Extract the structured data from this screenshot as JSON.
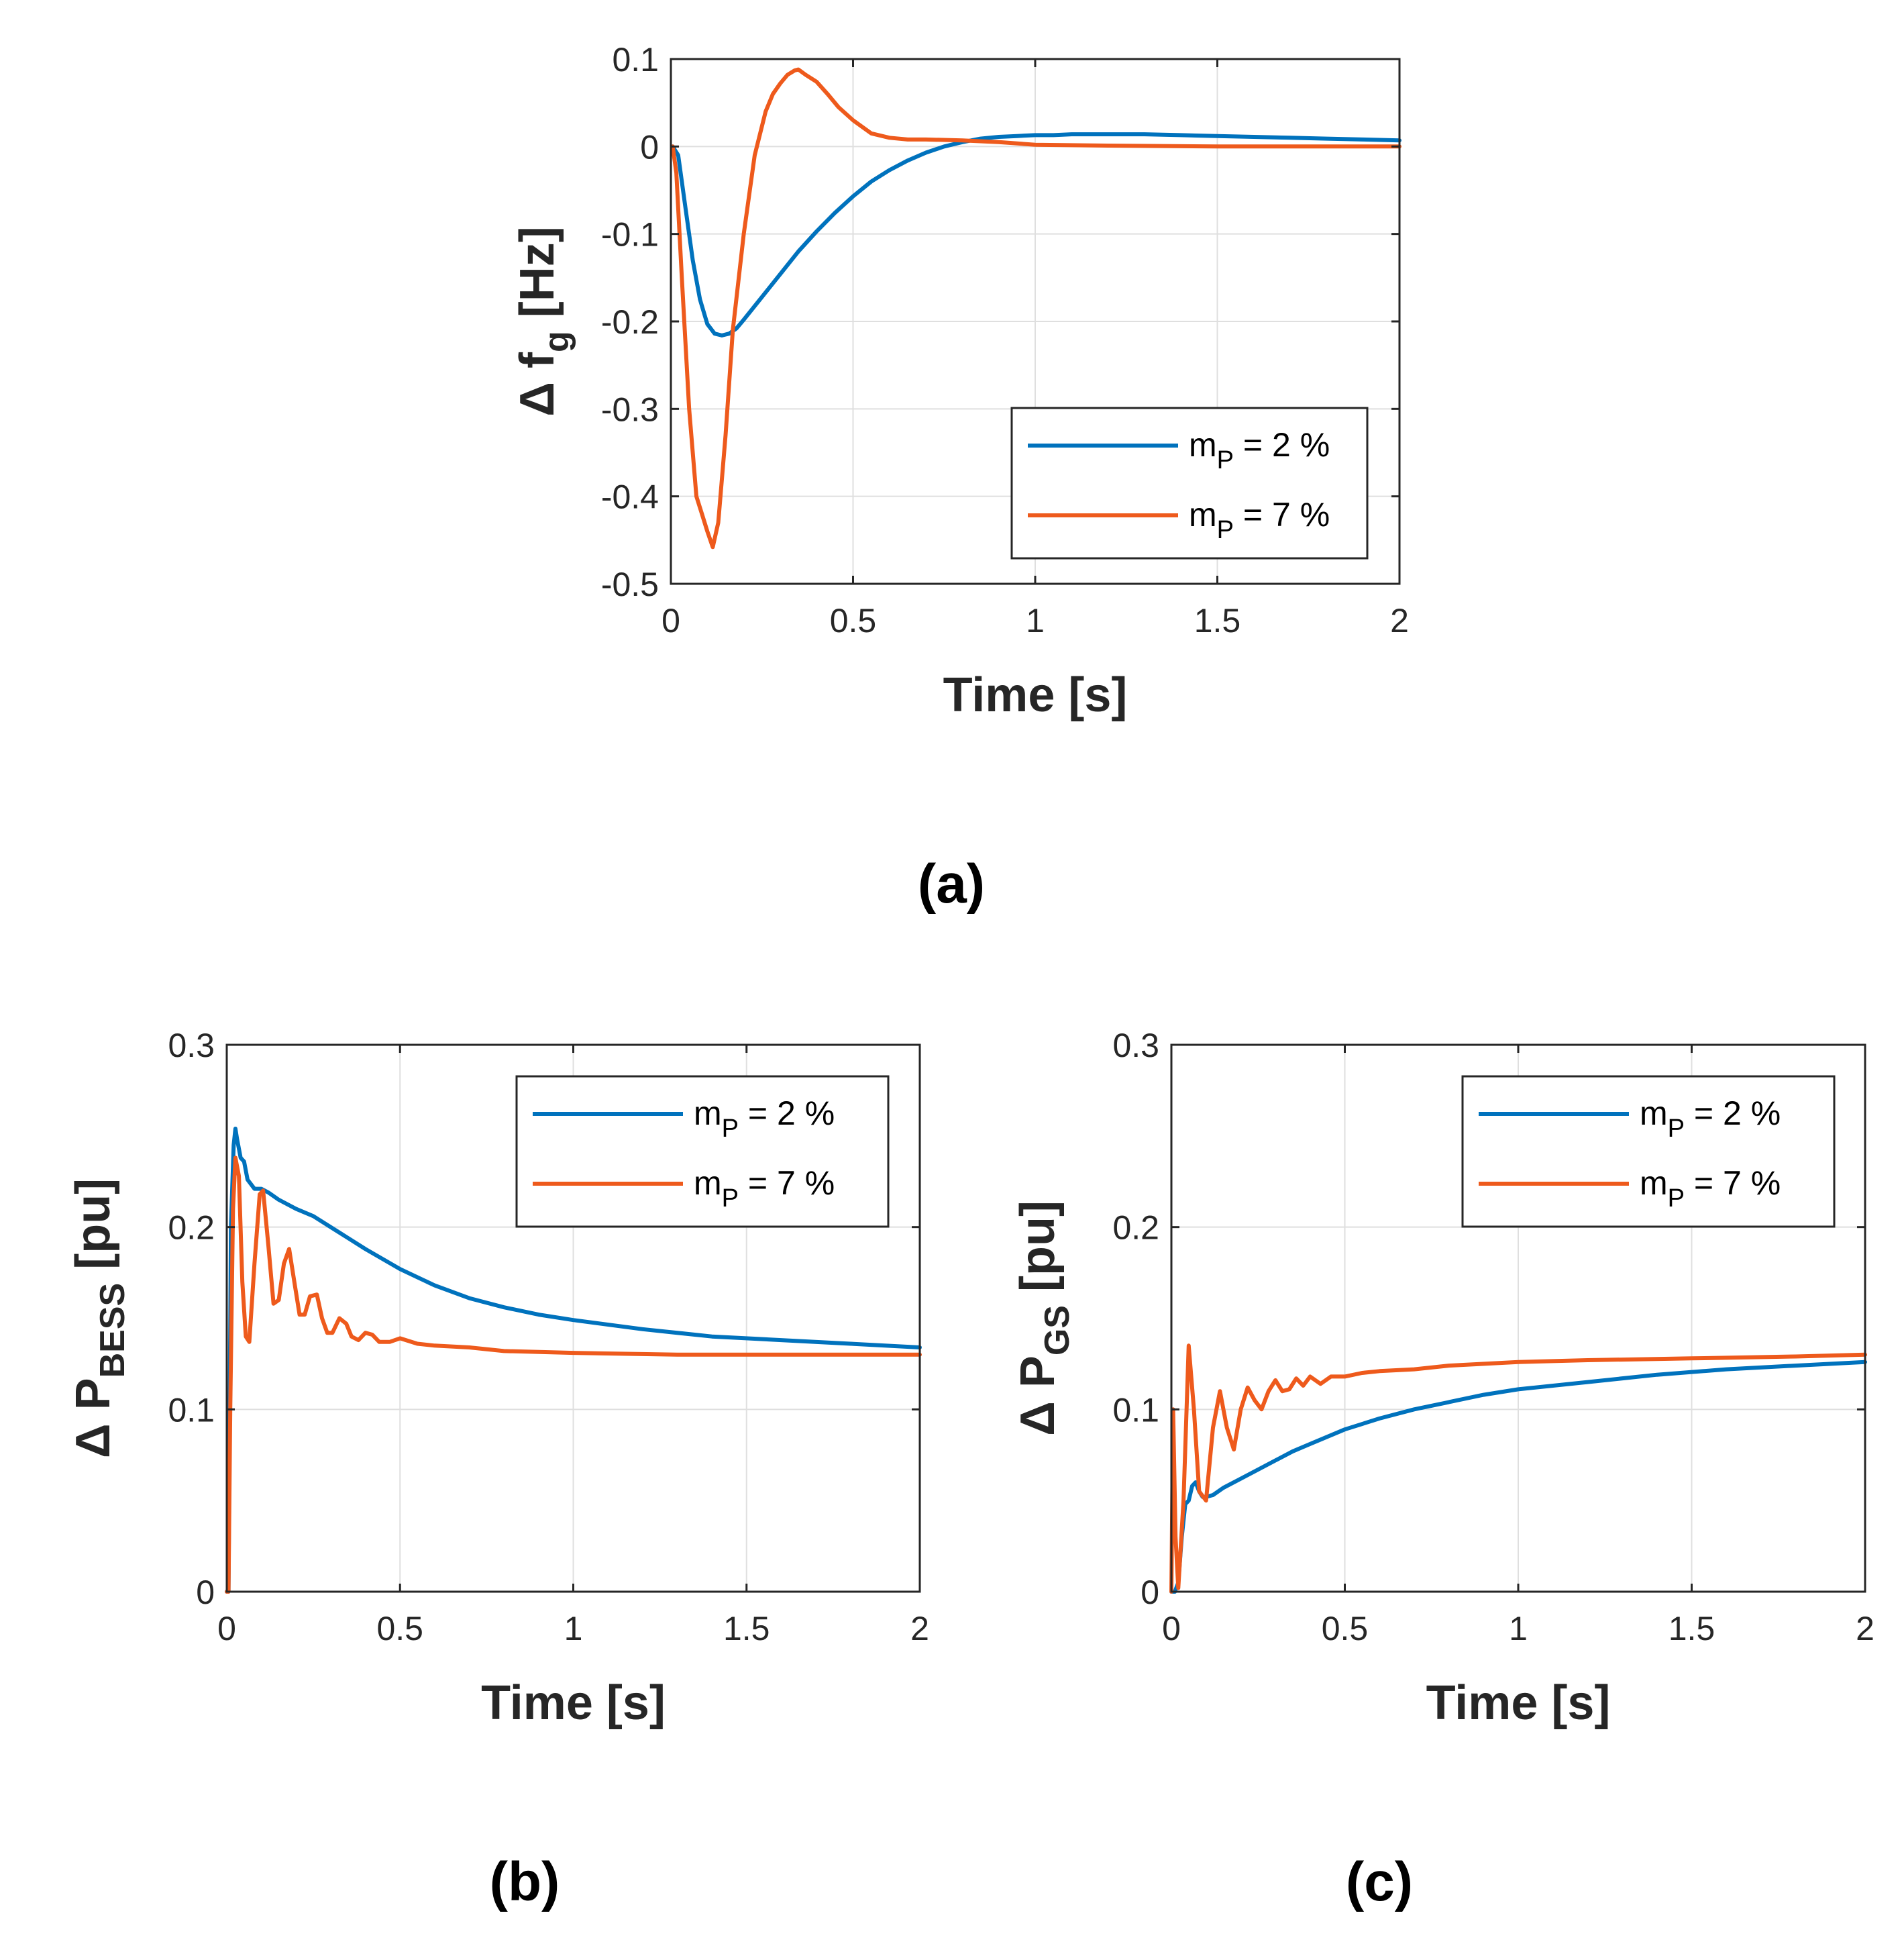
{
  "colors": {
    "series_1": "#0072BD",
    "series_2": "#EE5A1C",
    "axis": "#262626",
    "grid": "#dfdfdf"
  },
  "chart_data": [
    {
      "id": "a",
      "type": "line",
      "caption": "(a)",
      "title": "",
      "xlabel": "Time [s]",
      "ylabel": {
        "main": "Δ f",
        "sub": "g",
        "unit": "[Hz]"
      },
      "xlim": [
        0,
        2
      ],
      "ylim": [
        -0.5,
        0.1
      ],
      "xticks": [
        0,
        0.5,
        1,
        1.5,
        2
      ],
      "xtick_labels": [
        "0",
        "0.5",
        "1",
        "1.5",
        "2"
      ],
      "yticks": [
        -0.5,
        -0.4,
        -0.3,
        -0.2,
        -0.1,
        0,
        0.1
      ],
      "ytick_labels": [
        "-0.5",
        "-0.4",
        "-0.3",
        "-0.2",
        "-0.1",
        "0",
        "0.1"
      ],
      "grid": true,
      "legend_position": "bottom-right",
      "series": [
        {
          "name": {
            "main": "m",
            "sub": "P",
            "rest": " = 2 %"
          },
          "color_key": "series_1",
          "x": [
            0.005,
            0.02,
            0.04,
            0.06,
            0.08,
            0.1,
            0.12,
            0.14,
            0.16,
            0.18,
            0.2,
            0.25,
            0.3,
            0.35,
            0.4,
            0.45,
            0.5,
            0.55,
            0.6,
            0.65,
            0.7,
            0.75,
            0.8,
            0.85,
            0.9,
            0.95,
            1.0,
            1.05,
            1.1,
            1.2,
            1.3,
            1.4,
            1.5,
            1.6,
            1.7,
            1.8,
            1.9,
            2.0
          ],
          "y": [
            0,
            -0.01,
            -0.07,
            -0.13,
            -0.175,
            -0.203,
            -0.214,
            -0.216,
            -0.214,
            -0.208,
            -0.198,
            -0.172,
            -0.146,
            -0.12,
            -0.097,
            -0.076,
            -0.057,
            -0.04,
            -0.027,
            -0.016,
            -0.007,
            0,
            0.005,
            0.009,
            0.011,
            0.012,
            0.013,
            0.013,
            0.014,
            0.014,
            0.014,
            0.013,
            0.012,
            0.011,
            0.01,
            0.009,
            0.008,
            0.007
          ]
        },
        {
          "name": {
            "main": "m",
            "sub": "P",
            "rest": " = 7 %"
          },
          "color_key": "series_2",
          "x": [
            0.005,
            0.015,
            0.03,
            0.05,
            0.07,
            0.085,
            0.1,
            0.115,
            0.13,
            0.15,
            0.17,
            0.2,
            0.23,
            0.26,
            0.28,
            0.3,
            0.32,
            0.34,
            0.35,
            0.37,
            0.4,
            0.43,
            0.46,
            0.5,
            0.55,
            0.6,
            0.65,
            0.7,
            0.8,
            0.9,
            1.0,
            1.2,
            1.5,
            2.0
          ],
          "y": [
            0,
            -0.03,
            -0.15,
            -0.3,
            -0.4,
            -0.42,
            -0.44,
            -0.458,
            -0.43,
            -0.33,
            -0.21,
            -0.1,
            -0.01,
            0.04,
            0.06,
            0.072,
            0.082,
            0.087,
            0.088,
            0.082,
            0.074,
            0.06,
            0.045,
            0.03,
            0.015,
            0.01,
            0.008,
            0.008,
            0.007,
            0.005,
            0.002,
            0.001,
            0,
            0
          ]
        }
      ]
    },
    {
      "id": "b",
      "type": "line",
      "caption": "(b)",
      "title": "",
      "xlabel": "Time [s]",
      "ylabel": {
        "main": "Δ P",
        "sub": "BESS",
        "unit": "[pu]"
      },
      "xlim": [
        0,
        2
      ],
      "ylim": [
        0,
        0.3
      ],
      "xticks": [
        0,
        0.5,
        1,
        1.5,
        2
      ],
      "xtick_labels": [
        "0",
        "0.5",
        "1",
        "1.5",
        "2"
      ],
      "yticks": [
        0,
        0.1,
        0.2,
        0.3
      ],
      "ytick_labels": [
        "0",
        "0.1",
        "0.2",
        "0.3"
      ],
      "grid": true,
      "legend_position": "top-right",
      "series": [
        {
          "name": {
            "main": "m",
            "sub": "P",
            "rest": " = 2 %"
          },
          "color_key": "series_1",
          "x": [
            0.0,
            0.005,
            0.012,
            0.02,
            0.025,
            0.03,
            0.04,
            0.05,
            0.06,
            0.08,
            0.1,
            0.12,
            0.15,
            0.2,
            0.25,
            0.3,
            0.35,
            0.4,
            0.5,
            0.6,
            0.7,
            0.8,
            0.9,
            1.0,
            1.2,
            1.4,
            1.6,
            1.8,
            2.0
          ],
          "y": [
            0,
            0,
            0.2,
            0.245,
            0.254,
            0.248,
            0.238,
            0.236,
            0.226,
            0.221,
            0.221,
            0.219,
            0.215,
            0.21,
            0.206,
            0.2,
            0.194,
            0.188,
            0.177,
            0.168,
            0.161,
            0.156,
            0.152,
            0.149,
            0.144,
            0.14,
            0.138,
            0.136,
            0.134
          ]
        },
        {
          "name": {
            "main": "m",
            "sub": "P",
            "rest": " = 7 %"
          },
          "color_key": "series_2",
          "x": [
            0.0,
            0.005,
            0.01,
            0.018,
            0.025,
            0.035,
            0.045,
            0.055,
            0.065,
            0.08,
            0.095,
            0.105,
            0.12,
            0.135,
            0.15,
            0.165,
            0.18,
            0.195,
            0.21,
            0.225,
            0.24,
            0.26,
            0.275,
            0.29,
            0.305,
            0.325,
            0.345,
            0.36,
            0.38,
            0.4,
            0.42,
            0.44,
            0.47,
            0.5,
            0.55,
            0.6,
            0.7,
            0.8,
            1.0,
            1.3,
            1.6,
            2.0
          ],
          "y": [
            0,
            0,
            0.1,
            0.21,
            0.238,
            0.228,
            0.17,
            0.14,
            0.137,
            0.18,
            0.218,
            0.22,
            0.19,
            0.158,
            0.16,
            0.18,
            0.188,
            0.17,
            0.152,
            0.152,
            0.162,
            0.163,
            0.15,
            0.142,
            0.142,
            0.15,
            0.147,
            0.14,
            0.138,
            0.142,
            0.141,
            0.137,
            0.137,
            0.139,
            0.136,
            0.135,
            0.134,
            0.132,
            0.131,
            0.13,
            0.13,
            0.13
          ]
        }
      ]
    },
    {
      "id": "c",
      "type": "line",
      "caption": "(c)",
      "title": "",
      "xlabel": "Time [s]",
      "ylabel": {
        "main": "Δ P",
        "sub": "GS",
        "unit": "[pu]"
      },
      "xlim": [
        0,
        2
      ],
      "ylim": [
        0,
        0.3
      ],
      "xticks": [
        0,
        0.5,
        1,
        1.5,
        2
      ],
      "xtick_labels": [
        "0",
        "0.5",
        "1",
        "1.5",
        "2"
      ],
      "yticks": [
        0,
        0.1,
        0.2,
        0.3
      ],
      "ytick_labels": [
        "0",
        "0.1",
        "0.2",
        "0.3"
      ],
      "grid": true,
      "legend_position": "top-right",
      "series": [
        {
          "name": {
            "main": "m",
            "sub": "P",
            "rest": " = 2 %"
          },
          "color_key": "series_1",
          "x": [
            0.0,
            0.01,
            0.02,
            0.03,
            0.04,
            0.05,
            0.06,
            0.07,
            0.08,
            0.09,
            0.1,
            0.12,
            0.15,
            0.2,
            0.25,
            0.3,
            0.35,
            0.4,
            0.5,
            0.6,
            0.7,
            0.8,
            0.9,
            1.0,
            1.2,
            1.4,
            1.6,
            1.8,
            2.0
          ],
          "y": [
            0,
            0.0,
            0.005,
            0.03,
            0.048,
            0.05,
            0.058,
            0.06,
            0.055,
            0.052,
            0.052,
            0.053,
            0.057,
            0.062,
            0.067,
            0.072,
            0.077,
            0.081,
            0.089,
            0.095,
            0.1,
            0.104,
            0.108,
            0.111,
            0.115,
            0.119,
            0.122,
            0.124,
            0.126
          ]
        },
        {
          "name": {
            "main": "m",
            "sub": "P",
            "rest": " = 7 %"
          },
          "color_key": "series_2",
          "x": [
            0.0,
            0.005,
            0.012,
            0.02,
            0.035,
            0.05,
            0.065,
            0.08,
            0.1,
            0.12,
            0.14,
            0.16,
            0.18,
            0.2,
            0.22,
            0.24,
            0.26,
            0.28,
            0.3,
            0.32,
            0.34,
            0.36,
            0.38,
            0.4,
            0.43,
            0.46,
            0.5,
            0.55,
            0.6,
            0.7,
            0.8,
            1.0,
            1.2,
            1.5,
            1.8,
            2.0
          ],
          "y": [
            0,
            0.1,
            0.03,
            0.002,
            0.05,
            0.135,
            0.1,
            0.055,
            0.05,
            0.09,
            0.11,
            0.09,
            0.078,
            0.1,
            0.112,
            0.105,
            0.1,
            0.11,
            0.116,
            0.11,
            0.111,
            0.117,
            0.113,
            0.118,
            0.114,
            0.118,
            0.118,
            0.12,
            0.121,
            0.122,
            0.124,
            0.126,
            0.127,
            0.128,
            0.129,
            0.13
          ]
        }
      ]
    }
  ]
}
